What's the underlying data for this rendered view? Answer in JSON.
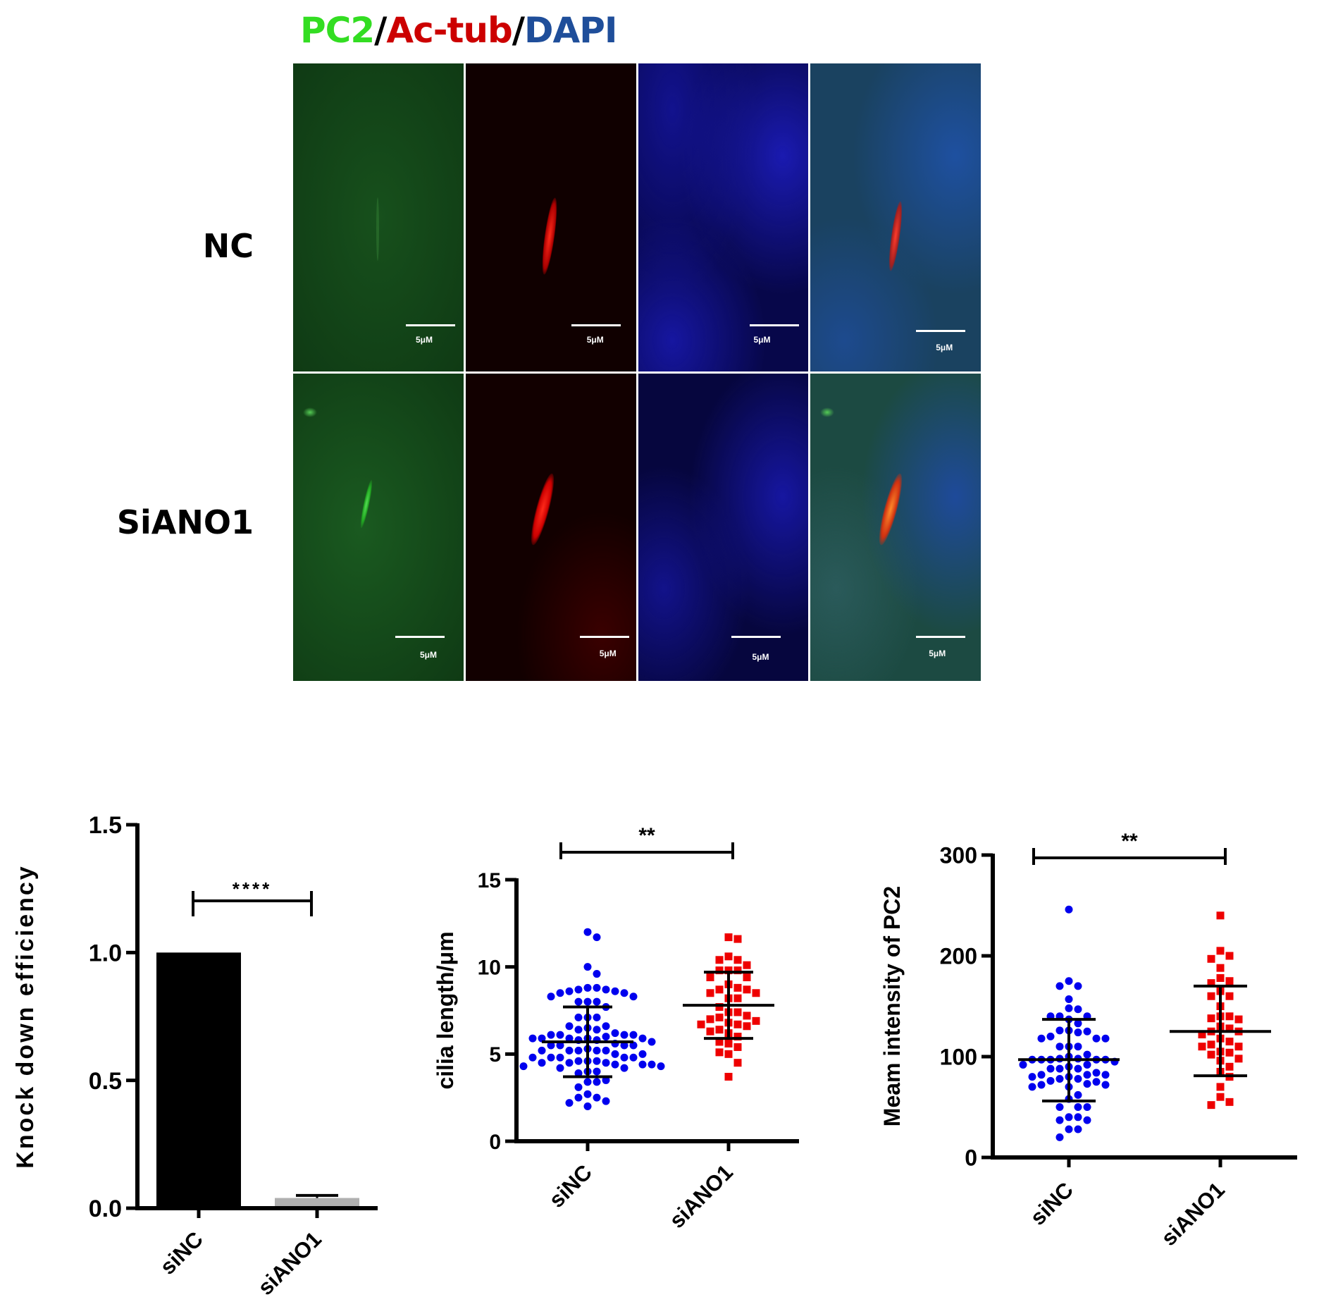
{
  "figure_title": {
    "parts": [
      {
        "text": "PC2",
        "color": "#33dd22"
      },
      {
        "text": "/",
        "color": "#000000"
      },
      {
        "text": "Ac-tub",
        "color": "#cc0000"
      },
      {
        "text": "/",
        "color": "#000000"
      },
      {
        "text": "DAPI",
        "color": "#1f4e9a"
      }
    ]
  },
  "micrographs": {
    "rows": [
      "NC",
      "SiANO1"
    ],
    "channels": [
      "PC2 (green)",
      "Ac-tub (red)",
      "DAPI (blue)",
      "Merge"
    ],
    "scale_bar_label": "5μM"
  },
  "chart_data": [
    {
      "type": "bar",
      "categories": [
        "siNC",
        "siANO1"
      ],
      "values": [
        1.0,
        0.04
      ],
      "errors": [
        0,
        0.01
      ],
      "bar_colors": [
        "#000000",
        "#b0b0b0"
      ],
      "ylabel": "Knock down efficiency",
      "ylim": [
        0,
        1.5
      ],
      "yticks": [
        "0.0",
        "0.5",
        "1.0",
        "1.5"
      ],
      "significance": "****",
      "grid": false
    },
    {
      "type": "scatter",
      "categories": [
        "siNC",
        "siANO1"
      ],
      "ylabel": "cilia length/μm",
      "ylim": [
        0,
        15
      ],
      "yticks": [
        "0",
        "5",
        "10",
        "15"
      ],
      "significance": "**",
      "grid": false,
      "series": [
        {
          "category": "siNC",
          "color": "#0000ee",
          "marker": "circle",
          "mean": 5.7,
          "sd_low": 3.7,
          "sd_high": 7.7,
          "values": [
            12.0,
            11.7,
            10.0,
            9.6,
            8.8,
            8.7,
            8.7,
            8.6,
            8.6,
            8.8,
            8.5,
            8.5,
            8.3,
            8.3,
            8.0,
            8.0,
            8.0,
            7.7,
            7.1,
            7.1,
            7.1,
            6.6,
            6.5,
            6.4,
            6.4,
            6.6,
            6.2,
            6.1,
            6.1,
            6.1,
            6.1,
            6.0,
            5.9,
            5.9,
            5.9,
            5.9,
            5.9,
            5.8,
            5.8,
            5.7,
            5.6,
            5.5,
            5.5,
            5.5,
            5.5,
            5.3,
            5.2,
            5.2,
            5.2,
            5.2,
            5.2,
            5.0,
            5.0,
            4.8,
            4.8,
            4.8,
            4.8,
            4.8,
            4.6,
            4.6,
            4.6,
            4.5,
            4.5,
            4.5,
            4.4,
            4.4,
            4.4,
            4.3,
            4.3,
            4.2,
            4.2,
            4.0,
            4.0,
            3.9,
            3.5,
            3.4,
            3.4,
            3.1,
            2.7,
            2.5,
            2.5,
            2.3,
            2.2,
            2.0
          ]
        },
        {
          "category": "siANO1",
          "color": "#ee0000",
          "marker": "square",
          "mean": 7.8,
          "sd_low": 5.9,
          "sd_high": 9.7,
          "values": [
            11.7,
            11.6,
            10.6,
            10.4,
            10.4,
            10.1,
            9.8,
            9.8,
            9.8,
            9.4,
            9.4,
            9.0,
            8.8,
            8.7,
            8.7,
            8.5,
            8.5,
            8.2,
            8.2,
            7.7,
            7.4,
            7.4,
            7.2,
            7.1,
            7.0,
            6.9,
            6.8,
            6.7,
            6.7,
            6.6,
            6.4,
            6.3,
            6.2,
            6.0,
            5.7,
            5.6,
            5.4,
            5.1,
            5.0,
            4.5,
            3.7
          ]
        }
      ]
    },
    {
      "type": "scatter",
      "categories": [
        "siNC",
        "siANO1"
      ],
      "ylabel": "Meam intensity of PC2",
      "ylim": [
        0,
        300
      ],
      "yticks": [
        "0",
        "100",
        "200",
        "300"
      ],
      "significance": "**",
      "grid": false,
      "series": [
        {
          "category": "siNC",
          "color": "#0000ee",
          "marker": "circle",
          "mean": 97,
          "sd_low": 56,
          "sd_high": 137,
          "values": [
            246,
            175,
            170,
            170,
            157,
            148,
            147,
            140,
            140,
            140,
            137,
            133,
            126,
            126,
            124,
            125,
            120,
            118,
            118,
            118,
            110,
            110,
            110,
            102,
            100,
            98,
            98,
            97,
            97,
            97,
            97,
            97,
            95,
            92,
            92,
            90,
            88,
            88,
            88,
            84,
            82,
            82,
            82,
            80,
            80,
            78,
            78,
            76,
            75,
            73,
            72,
            72,
            70,
            70,
            62,
            58,
            50,
            50,
            50,
            40,
            40,
            37,
            37,
            28,
            28,
            20
          ]
        },
        {
          "category": "siANO1",
          "color": "#ee0000",
          "marker": "square",
          "mean": 125,
          "sd_low": 81,
          "sd_high": 170,
          "values": [
            240,
            205,
            200,
            197,
            188,
            178,
            175,
            173,
            165,
            160,
            160,
            150,
            140,
            140,
            138,
            137,
            130,
            128,
            125,
            125,
            122,
            118,
            115,
            112,
            110,
            110,
            105,
            104,
            102,
            98,
            96,
            90,
            85,
            80,
            70,
            60,
            55,
            52
          ]
        }
      ]
    }
  ]
}
